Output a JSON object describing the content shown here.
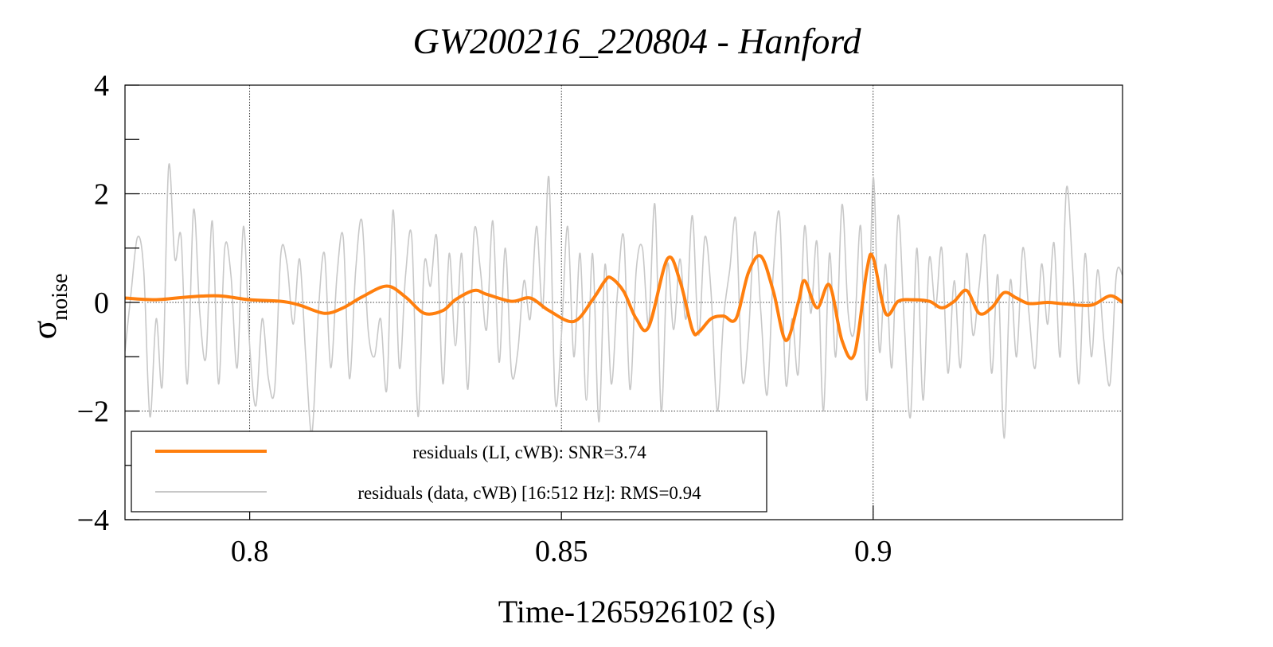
{
  "chart_data": {
    "type": "line",
    "title": "GW200216_220804 - Hanford",
    "xlabel": "Time-1265926102 (s)",
    "ylabel": "σ",
    "ylabel_subscript": "noise",
    "xlim": [
      0.78,
      0.94
    ],
    "ylim": [
      -4,
      4
    ],
    "x_ticks": [
      0.8,
      0.85,
      0.9
    ],
    "x_tick_labels": [
      "0.8",
      "0.85",
      "0.9"
    ],
    "y_ticks": [
      -4,
      -2,
      0,
      2,
      4
    ],
    "y_tick_labels": [
      "−4",
      "−2",
      "0",
      "2",
      "4"
    ],
    "grid": true,
    "legend_position": "bottom-left",
    "series": [
      {
        "name": "residuals (LI, cWB): SNR=3.74",
        "color": "#ff7f0e",
        "x": [
          0.78,
          0.785,
          0.79,
          0.795,
          0.8,
          0.805,
          0.808,
          0.812,
          0.815,
          0.818,
          0.822,
          0.825,
          0.828,
          0.831,
          0.833,
          0.836,
          0.838,
          0.842,
          0.845,
          0.848,
          0.852,
          0.855,
          0.857,
          0.858,
          0.86,
          0.862,
          0.864,
          0.867,
          0.869,
          0.871,
          0.872,
          0.874,
          0.876,
          0.878,
          0.88,
          0.882,
          0.884,
          0.886,
          0.888,
          0.889,
          0.891,
          0.893,
          0.895,
          0.897,
          0.899,
          0.9,
          0.902,
          0.904,
          0.906,
          0.909,
          0.911,
          0.913,
          0.915,
          0.917,
          0.919,
          0.921,
          0.923,
          0.925,
          0.928,
          0.931,
          0.935,
          0.938,
          0.94
        ],
        "values": [
          0.08,
          0.05,
          0.1,
          0.12,
          0.05,
          0.02,
          -0.05,
          -0.2,
          -0.1,
          0.1,
          0.3,
          0.1,
          -0.2,
          -0.15,
          0.05,
          0.22,
          0.15,
          0.02,
          0.08,
          -0.15,
          -0.35,
          0.05,
          0.4,
          0.45,
          0.2,
          -0.3,
          -0.45,
          0.8,
          0.4,
          -0.5,
          -0.55,
          -0.3,
          -0.25,
          -0.3,
          0.55,
          0.85,
          0.2,
          -0.7,
          0.0,
          0.4,
          -0.1,
          0.32,
          -0.7,
          -0.95,
          0.6,
          0.82,
          -0.2,
          0.02,
          0.05,
          0.02,
          -0.1,
          0.02,
          0.22,
          -0.2,
          -0.1,
          0.18,
          0.08,
          -0.02,
          0.0,
          -0.03,
          -0.05,
          0.12,
          0.0
        ]
      },
      {
        "name": "residuals (data, cWB) [16:512 Hz]: RMS=0.94",
        "color": "#c8c8c8",
        "x": [
          0.78,
          0.781,
          0.782,
          0.783,
          0.784,
          0.785,
          0.786,
          0.787,
          0.788,
          0.789,
          0.79,
          0.791,
          0.792,
          0.793,
          0.794,
          0.795,
          0.796,
          0.797,
          0.798,
          0.799,
          0.8,
          0.801,
          0.802,
          0.803,
          0.804,
          0.805,
          0.806,
          0.807,
          0.808,
          0.809,
          0.81,
          0.811,
          0.812,
          0.813,
          0.814,
          0.815,
          0.816,
          0.817,
          0.818,
          0.819,
          0.82,
          0.821,
          0.822,
          0.823,
          0.824,
          0.825,
          0.826,
          0.827,
          0.828,
          0.829,
          0.83,
          0.831,
          0.832,
          0.833,
          0.834,
          0.835,
          0.836,
          0.837,
          0.838,
          0.839,
          0.84,
          0.841,
          0.842,
          0.843,
          0.844,
          0.845,
          0.846,
          0.847,
          0.848,
          0.849,
          0.85,
          0.851,
          0.852,
          0.853,
          0.854,
          0.855,
          0.856,
          0.857,
          0.858,
          0.859,
          0.86,
          0.861,
          0.862,
          0.863,
          0.864,
          0.865,
          0.866,
          0.867,
          0.868,
          0.869,
          0.87,
          0.871,
          0.872,
          0.873,
          0.874,
          0.875,
          0.876,
          0.877,
          0.878,
          0.879,
          0.88,
          0.881,
          0.882,
          0.883,
          0.884,
          0.885,
          0.886,
          0.887,
          0.888,
          0.889,
          0.89,
          0.891,
          0.892,
          0.893,
          0.894,
          0.895,
          0.896,
          0.897,
          0.898,
          0.899,
          0.9,
          0.901,
          0.902,
          0.903,
          0.904,
          0.905,
          0.906,
          0.907,
          0.908,
          0.909,
          0.91,
          0.911,
          0.912,
          0.913,
          0.914,
          0.915,
          0.916,
          0.917,
          0.918,
          0.919,
          0.92,
          0.921,
          0.922,
          0.923,
          0.924,
          0.925,
          0.926,
          0.927,
          0.928,
          0.929,
          0.93,
          0.931,
          0.932,
          0.933,
          0.934,
          0.935,
          0.936,
          0.937,
          0.938,
          0.939,
          0.94
        ],
        "values": [
          -0.9,
          0.2,
          1.2,
          0.6,
          -2.1,
          -0.3,
          -1.5,
          2.5,
          0.8,
          1.2,
          -1.5,
          1.7,
          -0.2,
          -1.0,
          1.5,
          -1.5,
          1.0,
          0.5,
          -1.2,
          1.4,
          -0.8,
          -1.9,
          -0.3,
          -1.4,
          -1.6,
          0.9,
          0.7,
          -0.4,
          0.8,
          -1.0,
          -2.4,
          -0.2,
          0.9,
          -1.2,
          0.5,
          1.2,
          -1.4,
          0.6,
          1.5,
          -0.5,
          -1.0,
          -0.3,
          -1.6,
          1.7,
          -1.2,
          0.5,
          1.2,
          -2.1,
          0.7,
          0.3,
          1.2,
          -1.5,
          0.9,
          -0.8,
          0.9,
          -1.6,
          1.3,
          0.6,
          -0.5,
          1.5,
          -1.1,
          1.0,
          -1.3,
          -0.9,
          0.4,
          -0.3,
          1.4,
          -0.1,
          2.3,
          -1.8,
          -0.6,
          1.4,
          -1.0,
          0.9,
          -1.8,
          0.9,
          -2.2,
          0.7,
          -1.5,
          0.2,
          1.2,
          -1.6,
          0.6,
          1.0,
          -0.4,
          1.8,
          -2.0,
          0.7,
          -0.5,
          0.8,
          -0.3,
          1.6,
          -0.6,
          1.2,
          0.2,
          -2.0,
          -0.3,
          0.6,
          1.5,
          -1.4,
          -0.6,
          1.3,
          -0.2,
          -1.7,
          0.6,
          1.6,
          -1.5,
          -0.3,
          -1.3,
          1.4,
          -0.2,
          1.1,
          -2.0,
          0.9,
          -1.0,
          1.8,
          -0.2,
          -0.5,
          1.4,
          -1.8,
          2.3,
          -0.9,
          0.7,
          -1.2,
          1.6,
          -0.4,
          -2.1,
          1.0,
          -1.8,
          0.8,
          -0.1,
          1.0,
          -1.3,
          0.4,
          -1.2,
          0.9,
          -0.6,
          0.3,
          1.2,
          -1.3,
          0.5,
          -2.5,
          0.4,
          -1.0,
          1.0,
          -0.2,
          -1.2,
          0.7,
          -0.4,
          1.1,
          -1.0,
          2.1,
          0.6,
          -1.5,
          0.9,
          -1.0,
          0.6,
          -0.7,
          -1.5,
          0.5,
          0.5
        ]
      }
    ]
  }
}
